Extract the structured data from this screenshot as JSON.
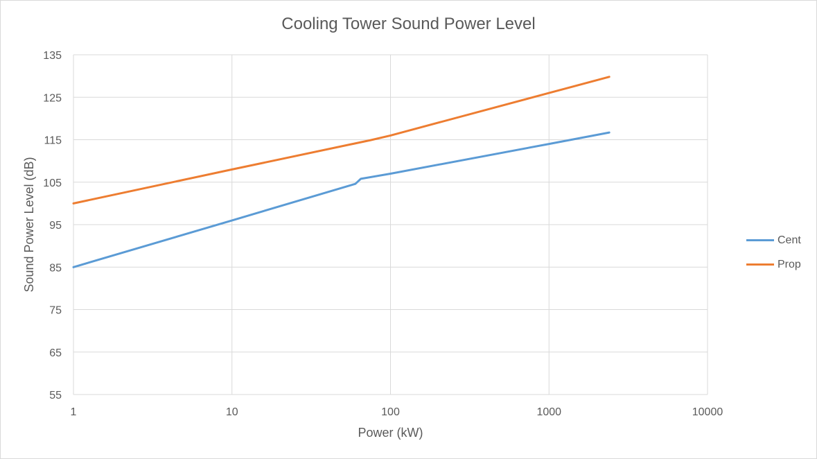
{
  "chart_data": {
    "type": "line",
    "title": "Cooling Tower Sound Power Level",
    "xlabel": "Power (kW)",
    "ylabel": "Sound Power Level (dB)",
    "xscale": "log",
    "xlim": [
      1,
      10000
    ],
    "ylim": [
      55,
      135
    ],
    "x_ticks": [
      1,
      10,
      100,
      1000,
      10000
    ],
    "y_ticks": [
      55,
      65,
      75,
      85,
      95,
      105,
      115,
      125,
      135
    ],
    "grid": true,
    "legend_position": "right",
    "series": [
      {
        "name": "Cent",
        "color": "#5b9bd5",
        "points": [
          [
            1,
            85
          ],
          [
            10,
            96
          ],
          [
            60,
            104.6
          ],
          [
            65,
            105.8
          ],
          [
            100,
            107
          ],
          [
            1000,
            114
          ],
          [
            2400,
            116.7
          ]
        ]
      },
      {
        "name": "Prop",
        "color": "#ed7d31",
        "points": [
          [
            1,
            100
          ],
          [
            10,
            108
          ],
          [
            75,
            114.9
          ],
          [
            100,
            116
          ],
          [
            1000,
            126
          ],
          [
            2400,
            129.8
          ]
        ]
      }
    ]
  }
}
